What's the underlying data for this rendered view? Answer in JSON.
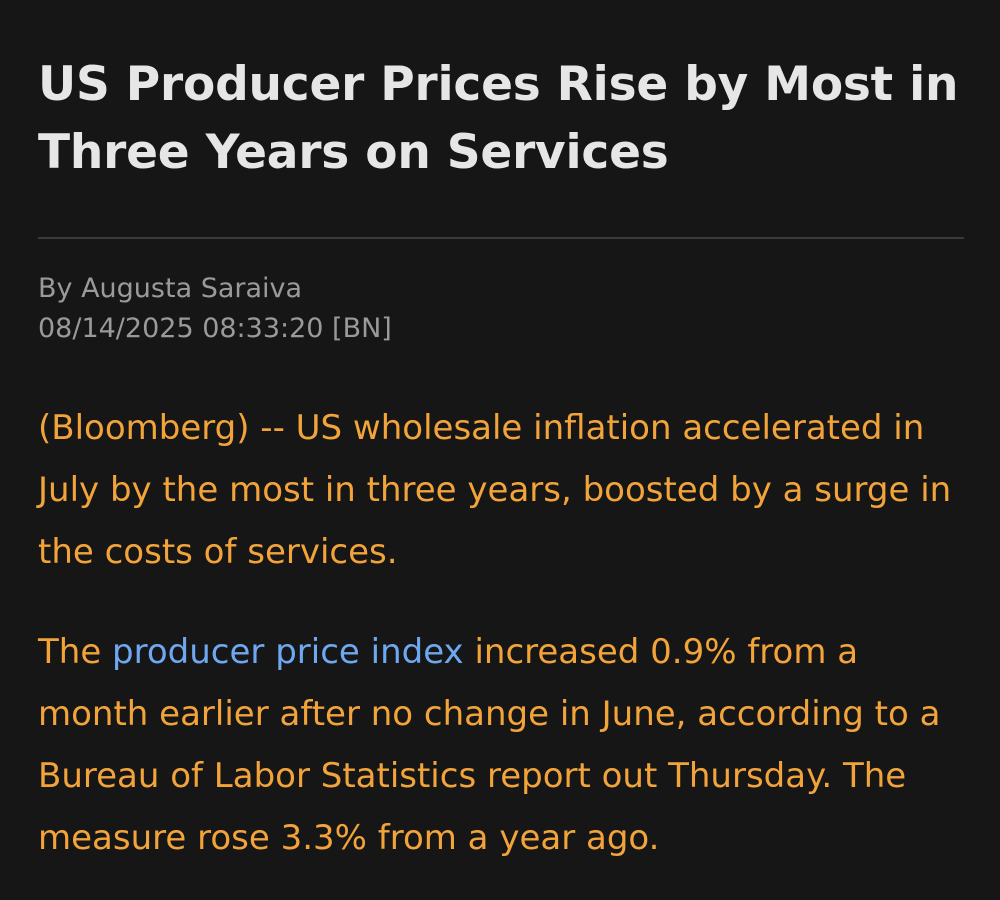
{
  "article": {
    "headline": "US Producer Prices Rise by Most in Three Years on Services",
    "byline": "By Augusta Saraiva",
    "timestamp": "08/14/2025 08:33:20 [BN]",
    "paragraph1": "(Bloomberg) -- US wholesale inflation accelerated in July by the most in three years, boosted by a surge in the costs of services.",
    "paragraph2_prefix": "The ",
    "paragraph2_link": "producer price index",
    "paragraph2_suffix": " increased 0.9% from a month earlier after no change in June, according to a Bureau of Labor Statistics report out Thursday. The measure rose 3.3% from a year ago."
  },
  "colors": {
    "background": "#161616",
    "headline": "#e6e6e6",
    "meta": "#9a9a9a",
    "body": "#f2a43a",
    "link": "#6ea8f0"
  }
}
